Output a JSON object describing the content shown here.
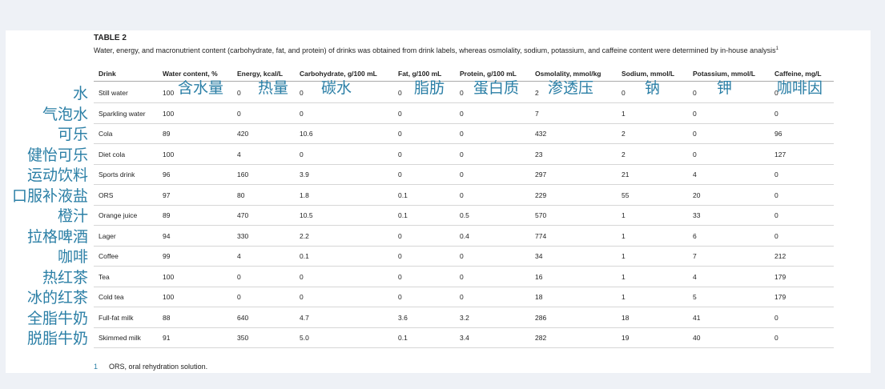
{
  "table": {
    "label": "TABLE 2",
    "caption": "Water, energy, and macronutrient content (carbohydrate, fat, and protein) of drinks was obtained from drink labels, whereas osmolality, sodium, potassium, and caffeine content were determined by in-house analysis",
    "caption_ref": "1",
    "headers": [
      "Drink",
      "Water content, %",
      "Energy, kcal/L",
      "Carbohydrate, g/100 mL",
      "Fat, g/100 mL",
      "Protein, g/100 mL",
      "Osmolality, mmol/kg",
      "Sodium, mmol/L",
      "Potassium, mmol/L",
      "Caffeine, mg/L"
    ],
    "rows": [
      [
        "Still water",
        "100",
        "0",
        "0",
        "0",
        "0",
        "2",
        "0",
        "0",
        "0"
      ],
      [
        "Sparkling water",
        "100",
        "0",
        "0",
        "0",
        "0",
        "7",
        "1",
        "0",
        "0"
      ],
      [
        "Cola",
        "89",
        "420",
        "10.6",
        "0",
        "0",
        "432",
        "2",
        "0",
        "96"
      ],
      [
        "Diet cola",
        "100",
        "4",
        "0",
        "0",
        "0",
        "23",
        "2",
        "0",
        "127"
      ],
      [
        "Sports drink",
        "96",
        "160",
        "3.9",
        "0",
        "0",
        "297",
        "21",
        "4",
        "0"
      ],
      [
        "ORS",
        "97",
        "80",
        "1.8",
        "0.1",
        "0",
        "229",
        "55",
        "20",
        "0"
      ],
      [
        "Orange juice",
        "89",
        "470",
        "10.5",
        "0.1",
        "0.5",
        "570",
        "1",
        "33",
        "0"
      ],
      [
        "Lager",
        "94",
        "330",
        "2.2",
        "0",
        "0.4",
        "774",
        "1",
        "6",
        "0"
      ],
      [
        "Coffee",
        "99",
        "4",
        "0.1",
        "0",
        "0",
        "34",
        "1",
        "7",
        "212"
      ],
      [
        "Tea",
        "100",
        "0",
        "0",
        "0",
        "0",
        "16",
        "1",
        "4",
        "179"
      ],
      [
        "Cold tea",
        "100",
        "0",
        "0",
        "0",
        "0",
        "18",
        "1",
        "5",
        "179"
      ],
      [
        "Full-fat milk",
        "88",
        "640",
        "4.7",
        "3.6",
        "3.2",
        "286",
        "18",
        "41",
        "0"
      ],
      [
        "Skimmed milk",
        "91",
        "350",
        "5.0",
        "0.1",
        "3.4",
        "282",
        "19",
        "40",
        "0"
      ]
    ],
    "footnote_num": "1",
    "footnote_text": "ORS, oral rehydration solution."
  },
  "annotations": {
    "rows": [
      "水",
      "气泡水",
      "可乐",
      "健怡可乐",
      "运动饮料",
      "口服补液盐",
      "橙汁",
      "拉格啤酒",
      "咖啡",
      "热红茶",
      "冰的红茶",
      "全脂牛奶",
      "脱脂牛奶"
    ],
    "columns": [
      "含水量",
      "热量",
      "碳水",
      "脂肪",
      "蛋白质",
      "渗透压",
      "钠",
      "钾",
      "咖啡因"
    ]
  },
  "colors": {
    "annotation": "#2b7fa6",
    "text": "#222222",
    "background": "#eef1f6"
  }
}
